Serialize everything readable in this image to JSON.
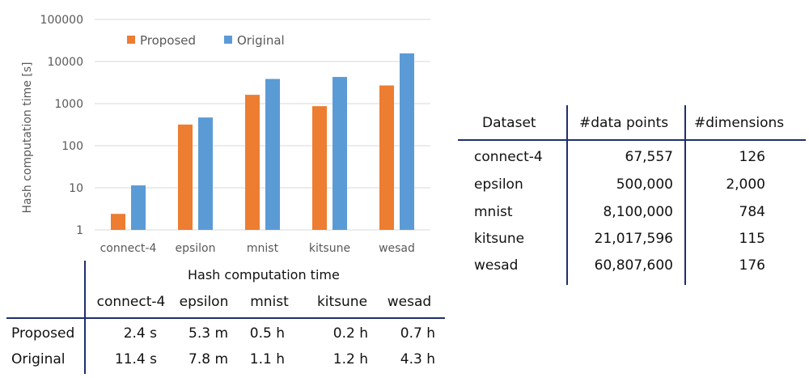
{
  "chart_data": {
    "type": "bar",
    "title": "",
    "xlabel": "",
    "ylabel": "Hash computation time  [s]",
    "yscale": "log",
    "ylim": [
      1,
      100000
    ],
    "yticks": [
      "1",
      "10",
      "100",
      "1000",
      "10000",
      "100000"
    ],
    "categories": [
      "connect-4",
      "epsilon",
      "mnist",
      "kitsune",
      "wesad"
    ],
    "series": [
      {
        "name": "Proposed",
        "color": "#ED7D31",
        "values": [
          2.4,
          318,
          1620,
          870,
          2700
        ]
      },
      {
        "name": "Original",
        "color": "#5B9BD5",
        "values": [
          11.4,
          468,
          3850,
          4300,
          15600
        ]
      }
    ],
    "grid": true,
    "legend": "top-left"
  },
  "time_table": {
    "title": "Hash computation time",
    "columns": [
      "connect-4",
      "epsilon",
      "mnist",
      "kitsune",
      "wesad"
    ],
    "rows": [
      {
        "label": "Proposed",
        "cells": [
          "2.4 s",
          "5.3 m",
          "0.5 h",
          "0.2 h",
          "0.7 h"
        ]
      },
      {
        "label": "Original",
        "cells": [
          "11.4 s",
          "7.8 m",
          "1.1 h",
          "1.2 h",
          "4.3 h"
        ]
      }
    ]
  },
  "dataset_table": {
    "headers": [
      "Dataset",
      "#data points",
      "#dimensions"
    ],
    "rows": [
      [
        "connect-4",
        "67,557",
        "126"
      ],
      [
        "epsilon",
        "500,000",
        "2,000"
      ],
      [
        "mnist",
        "8,100,000",
        "784"
      ],
      [
        "kitsune",
        "21,017,596",
        "115"
      ],
      [
        "wesad",
        "60,807,600",
        "176"
      ]
    ]
  }
}
